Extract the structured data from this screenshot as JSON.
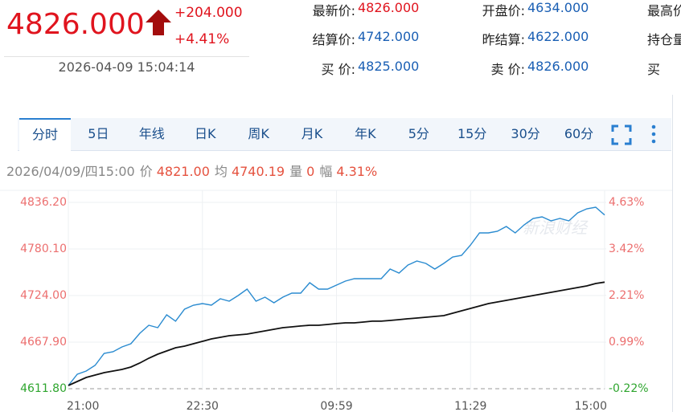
{
  "quote": {
    "price": "4826.000",
    "change": "+204.000",
    "change_pct": "+4.41%",
    "time": "2026-04-09 15:04:14"
  },
  "fields": [
    [
      {
        "label": "最新价:",
        "value": "4826.000"
      },
      {
        "label": "开盘价:",
        "value": "4634.000"
      },
      {
        "label": "最高价"
      }
    ],
    [
      {
        "label": "结算价:",
        "value": "4742.000"
      },
      {
        "label": "昨结算:",
        "value": "4622.000"
      },
      {
        "label": "持仓量"
      }
    ],
    [
      {
        "label": "买 价:",
        "value": "4825.000"
      },
      {
        "label": "卖 价:",
        "value": "4826.000"
      },
      {
        "label": "买"
      }
    ]
  ],
  "tabs": [
    "分时",
    "5日",
    "年线",
    "日K",
    "周K",
    "月K",
    "年K",
    "5分",
    "15分",
    "30分",
    "60分"
  ],
  "info": {
    "date": "2026/04/09/四15:00",
    "items": [
      {
        "label": "价",
        "value": "4821.00"
      },
      {
        "label": "均",
        "value": "4740.19"
      },
      {
        "label": "量",
        "value": "0"
      },
      {
        "label": "幅",
        "value": "4.31%"
      }
    ]
  },
  "chart_data": {
    "type": "line",
    "watermark": "新浪财经",
    "xlim": [
      0,
      60
    ],
    "xticks": [
      {
        "value": 0,
        "label": "21:00"
      },
      {
        "value": 15,
        "label": "22:30"
      },
      {
        "value": 30,
        "label": "09:59"
      },
      {
        "value": 45,
        "label": "11:29"
      },
      {
        "value": 60,
        "label": "15:00"
      }
    ],
    "ylim": [
      4611.8,
      4836.2
    ],
    "yticks": [
      {
        "value": 4611.8,
        "label": "4611.80"
      },
      {
        "value": 4667.9,
        "label": "4667.90"
      },
      {
        "value": 4724,
        "label": "4724.00"
      },
      {
        "value": 4780.1,
        "label": "4780.10"
      },
      {
        "value": 4836.2,
        "label": "4836.20"
      }
    ],
    "y2lim": [
      -0.22,
      4.63
    ],
    "y2ticks": [
      {
        "value": -0.22,
        "label": "-0.22%"
      },
      {
        "value": 0.99,
        "label": "0.99%"
      },
      {
        "value": 2.21,
        "label": "2.21%"
      },
      {
        "value": 3.42,
        "label": "3.42%"
      },
      {
        "value": 4.63,
        "label": "4.63%"
      }
    ],
    "up_color": "#ec6f6f",
    "down_color": "#2ea52e",
    "grid": true,
    "series": [
      {
        "color": "#2a8bd0",
        "values": [
          4615.7,
          4629.2,
          4633.1,
          4639.9,
          4654.4,
          4656.3,
          4662.1,
          4666.0,
          4678.5,
          4688.2,
          4685.3,
          4700.8,
          4693.1,
          4707.6,
          4712.4,
          4714.3,
          4712.4,
          4720.1,
          4717.2,
          4724.0,
          4731.7,
          4717.2,
          4722.1,
          4715.3,
          4722.1,
          4726.9,
          4726.9,
          4739.5,
          4731.7,
          4731.7,
          4736.6,
          4741.4,
          4744.3,
          4744.3,
          4744.3,
          4744.3,
          4755.9,
          4751.1,
          4760.8,
          4765.6,
          4762.7,
          4755.9,
          4762.7,
          4770.4,
          4772.4,
          4784.9,
          4799.4,
          4799.4,
          4801.4,
          4807.2,
          4799.4,
          4809.1,
          4816.9,
          4818.8,
          4814.0,
          4816.9,
          4814.0,
          4823.6,
          4828.5,
          4830.4,
          4821.0
        ]
      },
      {
        "color": "#111111",
        "values": [
          4615.7,
          4620.5,
          4625.3,
          4628.2,
          4631.1,
          4633.1,
          4635.0,
          4637.9,
          4642.8,
          4648.6,
          4653.4,
          4657.3,
          4661.1,
          4663.1,
          4666.0,
          4668.9,
          4671.8,
          4673.7,
          4675.6,
          4676.6,
          4677.6,
          4679.5,
          4681.4,
          4683.4,
          4685.3,
          4686.3,
          4687.3,
          4688.2,
          4688.2,
          4689.2,
          4690.2,
          4691.1,
          4691.1,
          4692.1,
          4693.1,
          4693.1,
          4694.0,
          4695.0,
          4696.0,
          4696.9,
          4697.9,
          4698.9,
          4699.8,
          4702.7,
          4705.6,
          4708.5,
          4711.4,
          4714.3,
          4716.3,
          4718.2,
          4720.1,
          4722.1,
          4724.0,
          4725.9,
          4727.9,
          4729.8,
          4731.7,
          4733.7,
          4735.6,
          4738.5,
          4740.19
        ]
      }
    ]
  }
}
